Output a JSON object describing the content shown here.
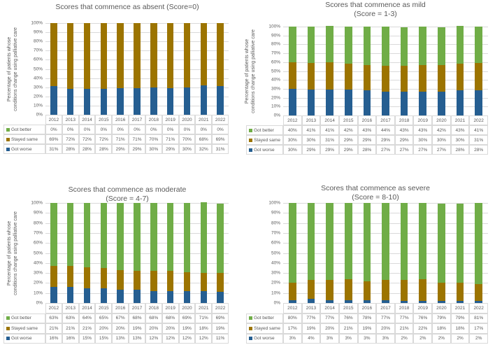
{
  "colors": {
    "got_better": "#70ad47",
    "stayed_same": "#9c7400",
    "got_worse": "#255e91"
  },
  "y_axis_label": [
    "Percentage of patients whose",
    "conditions change using palliative care"
  ],
  "chart_data": [
    {
      "type": "bar",
      "stacked": true,
      "title": [
        "Scores that commence as absent (Score=0)"
      ],
      "ylabel": "Percentage of patients whose conditions change using palliative care",
      "ylim": [
        0,
        100
      ],
      "yticks": [
        "0%",
        "10%",
        "20%",
        "30%",
        "40%",
        "50%",
        "60%",
        "70%",
        "80%",
        "90%",
        "100%"
      ],
      "categories": [
        "2012",
        "2013",
        "2014",
        "2015",
        "2016",
        "2017",
        "2018",
        "2019",
        "2020",
        "2021",
        "2022"
      ],
      "series": [
        {
          "name": "Got better",
          "key": "got_better",
          "values": [
            0,
            0,
            0,
            0,
            0,
            0,
            0,
            0,
            0,
            0,
            0
          ],
          "labels": [
            "0%",
            "0%",
            "0%",
            "0%",
            "0%",
            "0%",
            "0%",
            "0%",
            "0%",
            "0%",
            "0%"
          ]
        },
        {
          "name": "Stayed same",
          "key": "stayed_same",
          "values": [
            69,
            72,
            72,
            72,
            71,
            71,
            70,
            71,
            70,
            68,
            69
          ],
          "labels": [
            "69%",
            "72%",
            "72%",
            "72%",
            "71%",
            "71%",
            "70%",
            "71%",
            "70%",
            "68%",
            "69%"
          ]
        },
        {
          "name": "Got worse",
          "key": "got_worse",
          "values": [
            31,
            28,
            28,
            28,
            29,
            29,
            30,
            29,
            30,
            32,
            31
          ],
          "labels": [
            "31%",
            "28%",
            "28%",
            "28%",
            "29%",
            "29%",
            "30%",
            "29%",
            "30%",
            "32%",
            "31%"
          ]
        }
      ]
    },
    {
      "type": "bar",
      "stacked": true,
      "title": [
        "Scores that commence as mild",
        "(Score = 1-3)"
      ],
      "ylabel": "Percentage of patients whose conditions change using palliative care",
      "ylim": [
        0,
        100
      ],
      "yticks": [
        "0%",
        "10%",
        "20%",
        "30%",
        "40%",
        "50%",
        "60%",
        "70%",
        "80%",
        "90%",
        "100%"
      ],
      "categories": [
        "2012",
        "2013",
        "2014",
        "2015",
        "2016",
        "2017",
        "2018",
        "2019",
        "2020",
        "2021",
        "2022"
      ],
      "series": [
        {
          "name": "Got better",
          "key": "got_better",
          "values": [
            40,
            41,
            41,
            42,
            43,
            44,
            43,
            43,
            42,
            43,
            41
          ],
          "labels": [
            "40%",
            "41%",
            "41%",
            "42%",
            "43%",
            "44%",
            "43%",
            "43%",
            "42%",
            "43%",
            "41%"
          ]
        },
        {
          "name": "Stayed same",
          "key": "stayed_same",
          "values": [
            30,
            30,
            31,
            29,
            29,
            29,
            29,
            30,
            30,
            30,
            31
          ],
          "labels": [
            "30%",
            "30%",
            "31%",
            "29%",
            "29%",
            "29%",
            "29%",
            "30%",
            "30%",
            "30%",
            "31%"
          ]
        },
        {
          "name": "Got worse",
          "key": "got_worse",
          "values": [
            30,
            29,
            29,
            29,
            28,
            27,
            27,
            27,
            27,
            28,
            28
          ],
          "labels": [
            "30%",
            "29%",
            "29%",
            "29%",
            "28%",
            "27%",
            "27%",
            "27%",
            "27%",
            "28%",
            "28%"
          ]
        }
      ]
    },
    {
      "type": "bar",
      "stacked": true,
      "title": [
        "Scores that commence as moderate",
        "(Score = 4-7)"
      ],
      "ylabel": "Percentage of patients whose conditions change using palliative care",
      "ylim": [
        0,
        100
      ],
      "yticks": [
        "0%",
        "10%",
        "20%",
        "30%",
        "40%",
        "50%",
        "60%",
        "70%",
        "80%",
        "90%",
        "100%"
      ],
      "categories": [
        "2012",
        "2013",
        "2014",
        "2015",
        "2016",
        "2017",
        "2018",
        "2019",
        "2020",
        "2021",
        "2022"
      ],
      "series": [
        {
          "name": "Got better",
          "key": "got_better",
          "values": [
            63,
            63,
            64,
            65,
            67,
            68,
            68,
            68,
            69,
            71,
            69
          ],
          "labels": [
            "63%",
            "63%",
            "64%",
            "65%",
            "67%",
            "68%",
            "68%",
            "68%",
            "69%",
            "71%",
            "69%"
          ]
        },
        {
          "name": "Stayed same",
          "key": "stayed_same",
          "values": [
            21,
            21,
            21,
            20,
            20,
            19,
            20,
            20,
            19,
            18,
            19
          ],
          "labels": [
            "21%",
            "21%",
            "21%",
            "20%",
            "20%",
            "19%",
            "20%",
            "20%",
            "19%",
            "18%",
            "19%"
          ]
        },
        {
          "name": "Got worse",
          "key": "got_worse",
          "values": [
            16,
            16,
            15,
            15,
            13,
            13,
            12,
            12,
            12,
            12,
            11
          ],
          "labels": [
            "16%",
            "16%",
            "15%",
            "15%",
            "13%",
            "13%",
            "12%",
            "12%",
            "12%",
            "12%",
            "11%"
          ]
        }
      ]
    },
    {
      "type": "bar",
      "stacked": true,
      "title": [
        "Scores that commence as severe",
        "(Score = 8-10)"
      ],
      "ylabel": "",
      "ylim": [
        0,
        100
      ],
      "yticks": [
        "0%",
        "10%",
        "20%",
        "30%",
        "40%",
        "50%",
        "60%",
        "70%",
        "80%",
        "90%",
        "100%"
      ],
      "categories": [
        "2012",
        "2013",
        "2014",
        "2015",
        "2016",
        "2017",
        "2018",
        "2019",
        "2020",
        "2021",
        "2022"
      ],
      "series": [
        {
          "name": "Got better",
          "key": "got_better",
          "values": [
            80,
            77,
            77,
            76,
            78,
            77,
            77,
            76,
            79,
            79,
            81
          ],
          "labels": [
            "80%",
            "77%",
            "77%",
            "76%",
            "78%",
            "77%",
            "77%",
            "76%",
            "79%",
            "79%",
            "81%"
          ]
        },
        {
          "name": "Stayed same",
          "key": "stayed_same",
          "values": [
            17,
            19,
            20,
            21,
            19,
            20,
            21,
            22,
            18,
            18,
            17
          ],
          "labels": [
            "17%",
            "19%",
            "20%",
            "21%",
            "19%",
            "20%",
            "21%",
            "22%",
            "18%",
            "18%",
            "17%"
          ]
        },
        {
          "name": "Got worse",
          "key": "got_worse",
          "values": [
            3,
            4,
            3,
            3,
            3,
            3,
            2,
            2,
            2,
            2,
            2
          ],
          "labels": [
            "3%",
            "4%",
            "3%",
            "3%",
            "3%",
            "3%",
            "2%",
            "2%",
            "2%",
            "2%",
            "2%"
          ]
        }
      ]
    }
  ]
}
